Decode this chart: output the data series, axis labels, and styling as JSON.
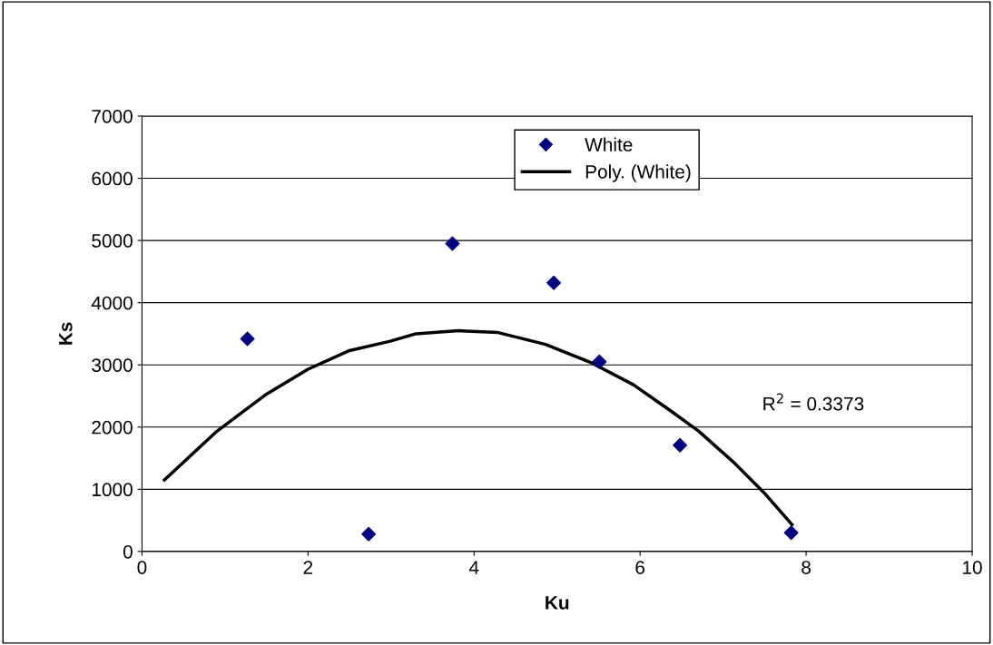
{
  "chart_data": {
    "type": "scatter",
    "xlabel": "Ku",
    "ylabel": "Ks",
    "xlim": [
      0,
      10
    ],
    "xticks": [
      0,
      2,
      4,
      6,
      8,
      10
    ],
    "ylim": [
      0,
      7000
    ],
    "yticks": [
      0,
      1000,
      2000,
      3000,
      4000,
      5000,
      6000,
      7000
    ],
    "grid": "y",
    "legend": "top",
    "series": [
      {
        "name": "White",
        "marker": "diamond",
        "color": "#000080",
        "x": [
          1.27,
          2.73,
          3.74,
          4.96,
          5.51,
          6.48,
          7.82
        ],
        "values": [
          3420,
          280,
          4950,
          4320,
          3050,
          1710,
          300
        ]
      },
      {
        "name": "Poly. (White)",
        "type": "line",
        "color": "#000000",
        "line_style": "solid",
        "x": [
          0.27,
          0.9,
          1.5,
          2.0,
          2.5,
          2.99,
          3.3,
          3.81,
          4.29,
          4.86,
          5.42,
          5.92,
          6.37,
          6.71,
          7.13,
          7.51,
          7.83
        ],
        "values": [
          1150,
          1930,
          2530,
          2930,
          3230,
          3380,
          3500,
          3550,
          3520,
          3330,
          3030,
          2680,
          2260,
          1930,
          1430,
          920,
          430
        ]
      }
    ],
    "annotations": [
      "R$^{2}$ = 0.3373"
    ]
  }
}
